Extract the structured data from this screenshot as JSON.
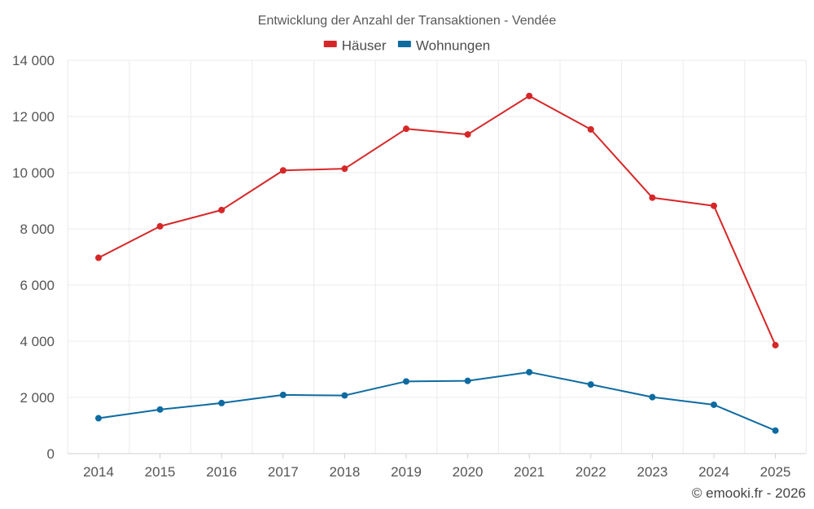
{
  "chart_data": {
    "type": "line",
    "title": "Entwicklung der Anzahl der Transaktionen - Vendée",
    "categories": [
      "2014",
      "2015",
      "2016",
      "2017",
      "2018",
      "2019",
      "2020",
      "2021",
      "2022",
      "2023",
      "2024",
      "2025"
    ],
    "series": [
      {
        "name": "Häuser",
        "color": "#d62728",
        "values": [
          6970,
          8090,
          8670,
          10080,
          10140,
          11560,
          11360,
          12730,
          11540,
          9110,
          8820,
          3860
        ]
      },
      {
        "name": "Wohnungen",
        "color": "#0e6ba0",
        "values": [
          1260,
          1570,
          1800,
          2090,
          2070,
          2570,
          2590,
          2900,
          2460,
          2010,
          1740,
          820
        ]
      }
    ],
    "ylim": [
      0,
      14000
    ],
    "yticks": [
      0,
      2000,
      4000,
      6000,
      8000,
      10000,
      12000,
      14000
    ],
    "ytick_labels": [
      "0",
      "2 000",
      "4 000",
      "6 000",
      "8 000",
      "10 000",
      "12 000",
      "14 000"
    ],
    "grid": true,
    "legend_position": "top-center",
    "xlabel": "",
    "ylabel": ""
  },
  "credit": "© emooki.fr - 2026"
}
